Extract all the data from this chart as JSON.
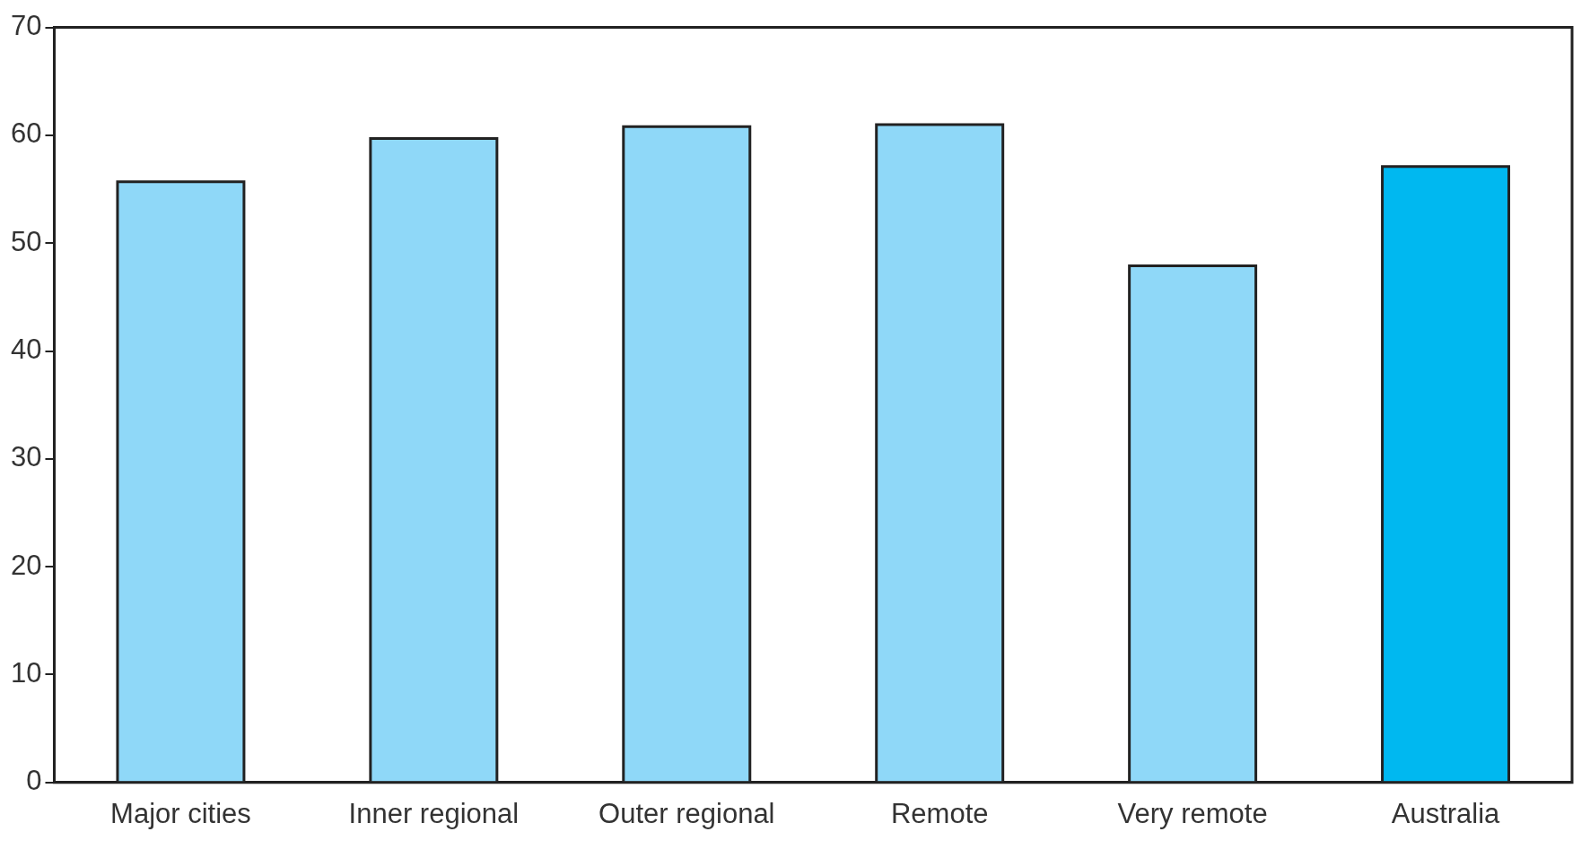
{
  "chart_data": {
    "type": "bar",
    "categories": [
      "Major cities",
      "Inner regional",
      "Outer regional",
      "Remote",
      "Very remote",
      "Australia"
    ],
    "values": [
      55.7,
      59.7,
      60.8,
      61.0,
      47.9,
      57.1
    ],
    "colors": [
      "#8fd8f8",
      "#8fd8f8",
      "#8fd8f8",
      "#8fd8f8",
      "#8fd8f8",
      "#00b8f0"
    ],
    "ylim": [
      0,
      70
    ],
    "yticks": [
      0,
      10,
      20,
      30,
      40,
      50,
      60,
      70
    ],
    "legend": false
  }
}
